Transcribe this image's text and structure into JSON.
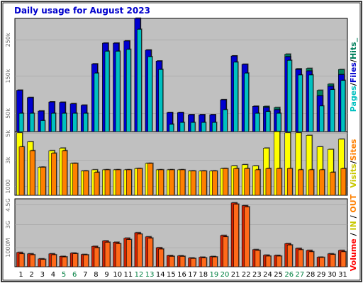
{
  "title": "Daily usage for August 2023",
  "colors": {
    "title": "#0000cc",
    "background": "#c0c0c0",
    "pages": "#00c0c0",
    "files": "#0000d0",
    "hits": "#00805c",
    "visits": "#ffff00",
    "sites": "#ff8000",
    "volume": "#ff0000",
    "in_out": "#ff8000",
    "weekend": "#008040",
    "weekday": "#000000"
  },
  "panels": {
    "top": {
      "ticks": [
        "250k",
        "150k",
        "50k"
      ],
      "legend": [
        {
          "text": "Pages",
          "color": "#00c0c0"
        },
        {
          "text": "/",
          "color": "#000000"
        },
        {
          "text": "Files",
          "color": "#0000d0"
        },
        {
          "text": "/",
          "color": "#000000"
        },
        {
          "text": "Hits_",
          "color": "#00805c"
        }
      ]
    },
    "middle": {
      "ticks": [
        "5k",
        "3k",
        "1000"
      ],
      "legend": [
        {
          "text": "Visits",
          "color": "#c8c800"
        },
        {
          "text": "/",
          "color": "#000000"
        },
        {
          "text": "Sites",
          "color": "#ff8000"
        }
      ]
    },
    "bottom": {
      "ticks": [
        "4.5G",
        "3G",
        "1000M"
      ],
      "legend": [
        {
          "text": "Volume",
          "color": "#ff0000"
        },
        {
          "text": " / ",
          "color": "#000000"
        },
        {
          "text": "IN",
          "color": "#c8c800"
        },
        {
          "text": " / ",
          "color": "#000000"
        },
        {
          "text": "OUT",
          "color": "#ff8000"
        }
      ]
    }
  },
  "chart_data": {
    "type": "bar",
    "x": [
      "1",
      "2",
      "3",
      "4",
      "5",
      "6",
      "7",
      "8",
      "9",
      "10",
      "11",
      "12",
      "13",
      "14",
      "15",
      "16",
      "17",
      "18",
      "19",
      "20",
      "21",
      "22",
      "23",
      "24",
      "25",
      "26",
      "27",
      "28",
      "29",
      "30",
      "31"
    ],
    "weekend_days": [
      "5",
      "6",
      "12",
      "13",
      "19",
      "20",
      "26",
      "27"
    ],
    "top": {
      "ylim": [
        0,
        310000
      ],
      "series": [
        {
          "name": "Hits",
          "values": [
            113000,
            93000,
            56000,
            81000,
            80000,
            76000,
            72000,
            185000,
            242000,
            242000,
            248000,
            310000,
            223000,
            193000,
            52000,
            52000,
            46000,
            46000,
            46000,
            87000,
            207000,
            184000,
            69000,
            69000,
            66000,
            212000,
            172000,
            173000,
            113000,
            130000,
            170000
          ]
        },
        {
          "name": "Files",
          "values": [
            113000,
            93000,
            56000,
            81000,
            80000,
            76000,
            72000,
            185000,
            242000,
            242000,
            248000,
            310000,
            223000,
            193000,
            52000,
            52000,
            46000,
            46000,
            46000,
            87000,
            207000,
            184000,
            69000,
            66000,
            60000,
            205000,
            170000,
            166000,
            98000,
            124000,
            156000
          ]
        },
        {
          "name": "Pages",
          "values": [
            50000,
            50000,
            30000,
            50000,
            50000,
            50000,
            50000,
            160000,
            220000,
            220000,
            225000,
            280000,
            205000,
            170000,
            20000,
            25000,
            25000,
            25000,
            25000,
            60000,
            190000,
            160000,
            50000,
            55000,
            50000,
            195000,
            155000,
            155000,
            70000,
            115000,
            140000
          ]
        }
      ]
    },
    "middle": {
      "ylim": [
        0,
        5000
      ],
      "series": [
        {
          "name": "Visits",
          "values": [
            4900,
            4200,
            2200,
            3500,
            3700,
            2500,
            1900,
            2000,
            2000,
            2000,
            2000,
            2100,
            2500,
            2000,
            2000,
            2000,
            1900,
            1900,
            1900,
            2100,
            2300,
            2400,
            2300,
            3700,
            5000,
            4900,
            4900,
            4700,
            3800,
            3600,
            4400
          ]
        },
        {
          "name": "Sites",
          "values": [
            3800,
            3500,
            2200,
            3300,
            3500,
            2500,
            1900,
            1800,
            2000,
            2000,
            2000,
            2100,
            2500,
            2000,
            2000,
            2000,
            1900,
            1900,
            1900,
            2100,
            2100,
            2100,
            2000,
            2100,
            2100,
            2100,
            2000,
            2000,
            2000,
            1800,
            2100
          ]
        }
      ]
    },
    "bottom": {
      "ylim": [
        0,
        5000
      ],
      "series": [
        {
          "name": "Volume",
          "values": [
            1050,
            950,
            580,
            950,
            760,
            1000,
            900,
            1500,
            1900,
            1800,
            2100,
            2500,
            2200,
            1400,
            820,
            800,
            640,
            700,
            750,
            2300,
            4700,
            4500,
            1260,
            850,
            830,
            1700,
            1350,
            1200,
            700,
            950,
            1200
          ]
        },
        {
          "name": "IN",
          "values": [
            950,
            880,
            540,
            880,
            720,
            960,
            870,
            1400,
            1800,
            1700,
            2000,
            2400,
            2100,
            1300,
            760,
            760,
            610,
            650,
            720,
            2200,
            4600,
            4400,
            1200,
            780,
            780,
            1600,
            1250,
            1100,
            680,
            900,
            1100
          ]
        },
        {
          "name": "OUT",
          "values": [
            950,
            880,
            540,
            880,
            720,
            960,
            870,
            1400,
            1800,
            1700,
            2000,
            2400,
            2100,
            1300,
            760,
            760,
            610,
            650,
            720,
            2200,
            4600,
            4400,
            1200,
            780,
            780,
            1600,
            1250,
            1100,
            680,
            900,
            1100
          ]
        }
      ]
    }
  }
}
